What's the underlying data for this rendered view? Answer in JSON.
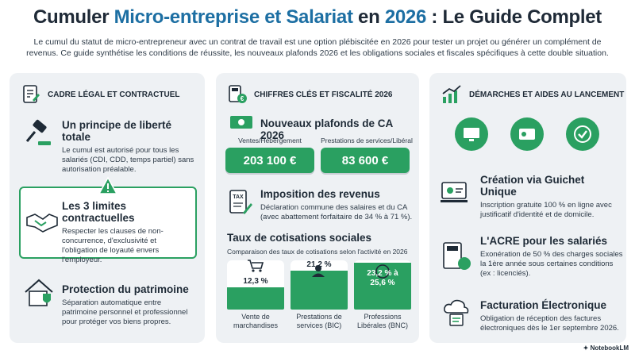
{
  "title": {
    "part1": "Cumuler ",
    "part2": "Micro-entreprise et Salariat",
    "part3": " en ",
    "part4": "2026",
    "part5": " : Le Guide Complet"
  },
  "intro": "Le cumul du statut de micro-entrepreneur avec un contrat de travail est une option plébiscitée en 2026 pour tester un projet ou générer un complément de revenus. Ce guide synthétise les conditions de réussite, les nouveaux plafonds 2026 et les obligations sociales et fiscales spécifiques à cette double situation.",
  "col1": {
    "heading": "CADRE LÉGAL ET CONTRACTUEL",
    "items": [
      {
        "title": "Un principe de liberté totale",
        "text": "Le cumul est autorisé pour tous les salariés (CDI, CDD, temps partiel) sans autorisation préalable."
      },
      {
        "title": "Les 3 limites contractuelles",
        "text": "Respecter les clauses de non-concurrence, d'exclusivité et l'obligation de loyauté envers l'employeur."
      },
      {
        "title": "Protection du patrimoine",
        "text": "Séparation automatique entre patrimoine personnel et professionnel pour protéger vos biens propres."
      }
    ]
  },
  "col2": {
    "heading": "CHIFFRES CLÉS ET FISCALITÉ 2026",
    "plafonds": {
      "title": "Nouveaux plafonds de CA 2026",
      "left_label": "Ventes/Hébergement",
      "left_value": "203 100 €",
      "right_label": "Prestations de services/Libéral",
      "right_value": "83 600 €"
    },
    "imposition": {
      "title": "Imposition des revenus",
      "text": "Déclaration commune des salaires et du CA (avec abattement forfaitaire de 34 % à 71 %)."
    },
    "taux": {
      "title": "Taux de cotisations sociales",
      "subtitle": "Comparaison des taux de cotisations selon l'activité en 2026"
    }
  },
  "col3": {
    "heading": "DÉMARCHES ET AIDES AU LANCEMENT",
    "items": [
      {
        "title": "Création via Guichet Unique",
        "text": "Inscription gratuite 100 % en ligne avec justificatif d'identité et de domicile."
      },
      {
        "title": "L'ACRE pour les salariés",
        "text": "Exonération de 50 % des charges sociales la 1ère année sous certaines conditions (ex : licenciés)."
      },
      {
        "title": "Facturation Électronique",
        "text": "Obligation de réception des factures électroniques dès le 1er septembre 2026."
      }
    ]
  },
  "chart_data": {
    "type": "bar",
    "categories": [
      "Vente de marchandises",
      "Prestations de services (BIC)",
      "Professions Libérales (BNC)"
    ],
    "values": [
      12.3,
      21.2,
      25.6
    ],
    "value_labels": [
      "12,3 %",
      "21,2 %",
      "23,2 % à 25,6 %"
    ],
    "bnc_range": [
      23.2,
      25.6
    ],
    "ylim": [
      0,
      26
    ],
    "title": "Taux de cotisations sociales",
    "xlabel": "",
    "ylabel": ""
  },
  "brand": "NotebookLM",
  "colors": {
    "accent": "#2aa061",
    "blue": "#1d6fa3",
    "panel": "#eef1f4"
  }
}
